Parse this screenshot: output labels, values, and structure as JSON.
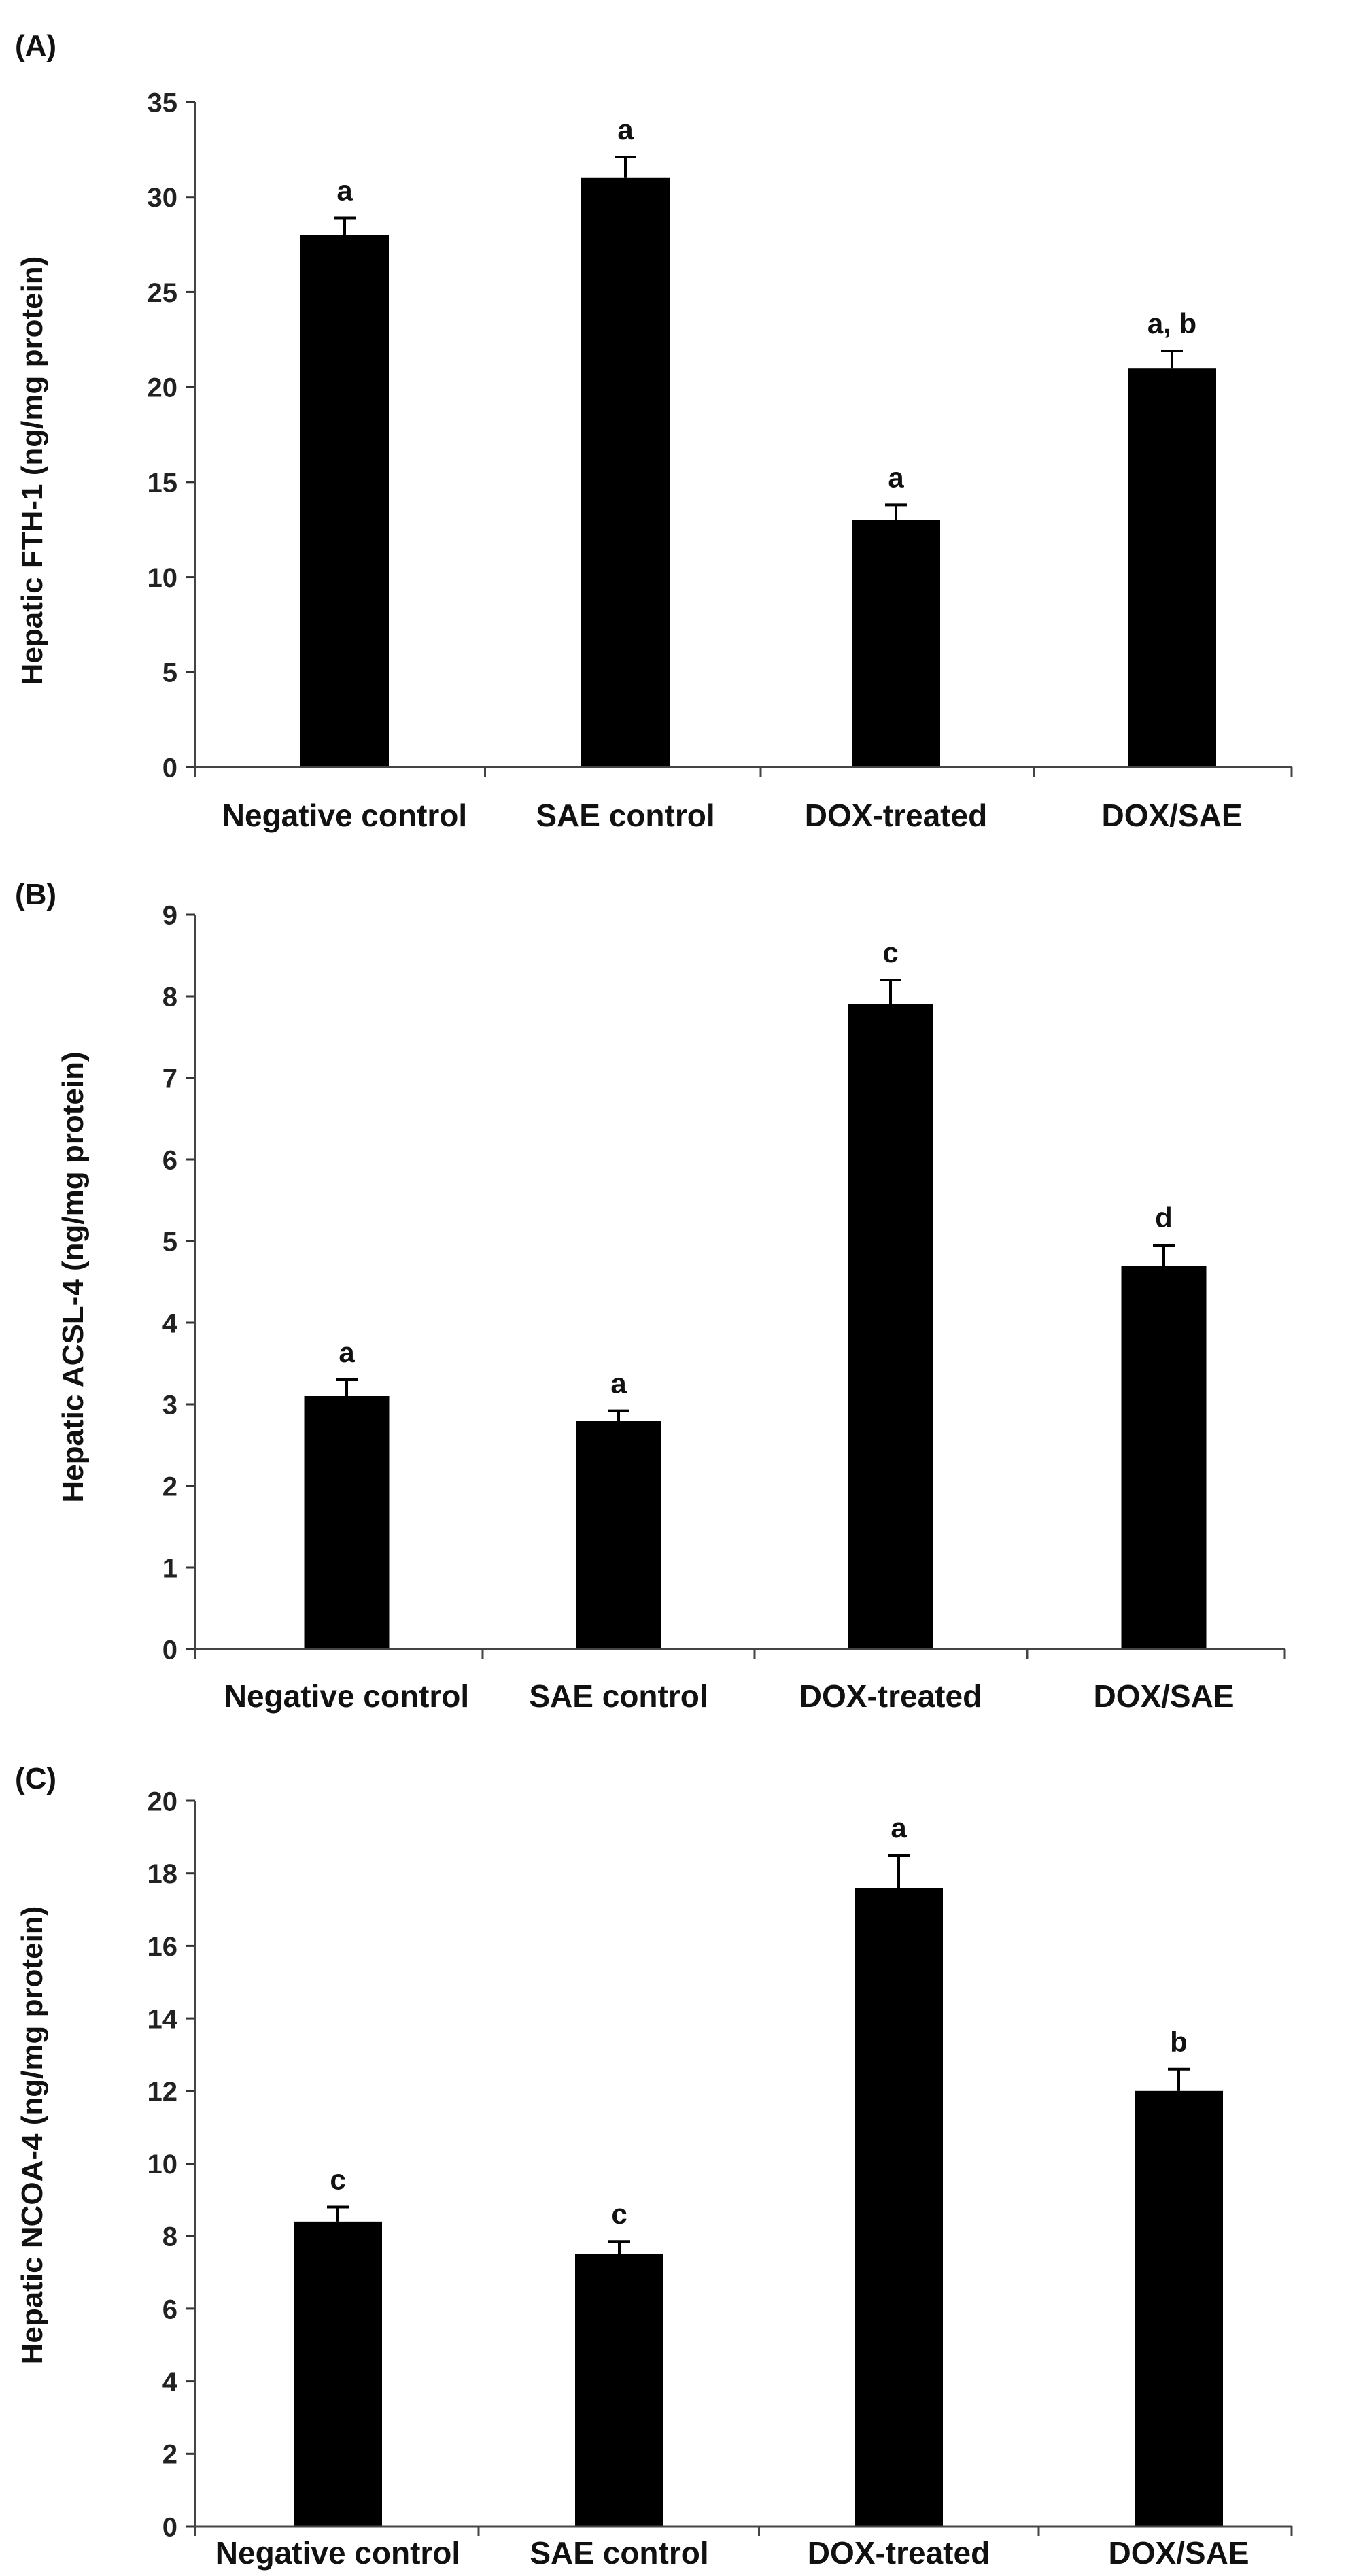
{
  "chart_data": [
    {
      "type": "bar",
      "panel": "(A)",
      "ylabel": "Hepatic FTH-1 (ng/mg protein)",
      "xlabel": "",
      "categories": [
        "Negative control",
        "SAE control",
        "DOX-treated",
        "DOX/SAE"
      ],
      "values": [
        28,
        31,
        13,
        21
      ],
      "errors": [
        0.9,
        1.1,
        0.8,
        0.9
      ],
      "significance": [
        "a",
        "a",
        "a",
        "a, b"
      ],
      "ylim": [
        0,
        35
      ],
      "yticks": [
        0,
        5,
        10,
        15,
        20,
        25,
        30,
        35
      ],
      "colors": {
        "bar": "#000000"
      }
    },
    {
      "type": "bar",
      "panel": "(B)",
      "ylabel": "Hepatic ACSL-4 (ng/mg protein)",
      "xlabel": "",
      "categories": [
        "Negative control",
        "SAE control",
        "DOX-treated",
        "DOX/SAE"
      ],
      "values": [
        3.1,
        2.8,
        7.9,
        4.7
      ],
      "errors": [
        0.2,
        0.12,
        0.3,
        0.25
      ],
      "significance": [
        "a",
        "a",
        "c",
        "d"
      ],
      "ylim": [
        0,
        9
      ],
      "yticks": [
        0,
        1,
        2,
        3,
        4,
        5,
        6,
        7,
        8,
        9
      ],
      "colors": {
        "bar": "#000000"
      }
    },
    {
      "type": "bar",
      "panel": "(C)",
      "ylabel": "Hepatic NCOA-4 (ng/mg protein)",
      "xlabel": "",
      "categories": [
        "Negative control",
        "SAE control",
        "DOX-treated",
        "DOX/SAE"
      ],
      "values": [
        8.4,
        7.5,
        17.6,
        12
      ],
      "errors": [
        0.4,
        0.35,
        0.9,
        0.6
      ],
      "significance": [
        "c",
        "c",
        "a",
        "b"
      ],
      "ylim": [
        0,
        20
      ],
      "yticks": [
        0,
        2,
        4,
        6,
        8,
        10,
        12,
        14,
        16,
        18,
        20
      ],
      "colors": {
        "bar": "#000000"
      }
    }
  ]
}
